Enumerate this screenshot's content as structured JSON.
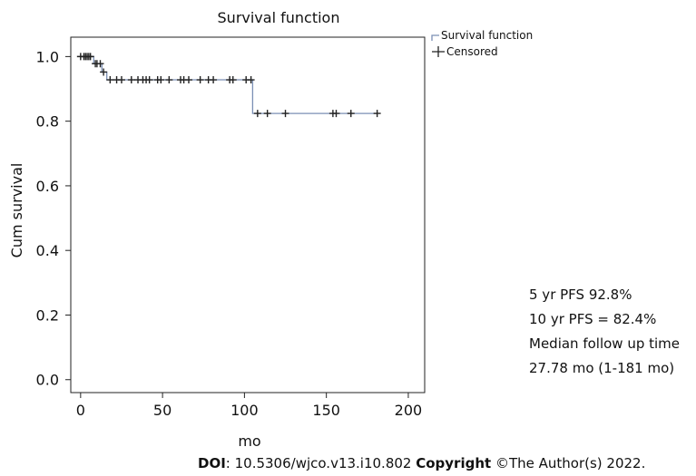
{
  "chart_data": {
    "type": "line",
    "title": "Survival function",
    "xlabel": "mo",
    "ylabel": "Cum survival",
    "xlim": [
      -6,
      210
    ],
    "ylim": [
      -0.04,
      1.06
    ],
    "x_ticks": [
      0,
      50,
      100,
      150,
      200
    ],
    "y_ticks": [
      0.0,
      0.2,
      0.4,
      0.6,
      0.8,
      1.0
    ],
    "y_tick_labels": [
      "0.0",
      "0.2",
      "0.4",
      "0.6",
      "0.8",
      "1.0"
    ],
    "legend_position": "top-right, outside plot",
    "series": [
      {
        "name": "Survival function",
        "color": "#7b8fb5",
        "step_points": [
          [
            0,
            1.0
          ],
          [
            8,
            1.0
          ],
          [
            8,
            0.978
          ],
          [
            13,
            0.978
          ],
          [
            13,
            0.952
          ],
          [
            16,
            0.952
          ],
          [
            16,
            0.928
          ],
          [
            105,
            0.928
          ],
          [
            105,
            0.824
          ],
          [
            181,
            0.824
          ]
        ]
      },
      {
        "name": "Censored",
        "color": "#222222",
        "marker": "+",
        "points": [
          [
            0,
            1.0
          ],
          [
            2,
            1.0
          ],
          [
            3,
            1.0
          ],
          [
            4,
            1.0
          ],
          [
            5,
            1.0
          ],
          [
            6,
            1.0
          ],
          [
            9,
            0.978
          ],
          [
            10,
            0.978
          ],
          [
            12,
            0.978
          ],
          [
            14,
            0.952
          ],
          [
            18,
            0.928
          ],
          [
            22,
            0.928
          ],
          [
            25,
            0.928
          ],
          [
            31,
            0.928
          ],
          [
            35,
            0.928
          ],
          [
            38,
            0.928
          ],
          [
            40,
            0.928
          ],
          [
            42,
            0.928
          ],
          [
            47,
            0.928
          ],
          [
            49,
            0.928
          ],
          [
            54,
            0.928
          ],
          [
            61,
            0.928
          ],
          [
            63,
            0.928
          ],
          [
            66,
            0.928
          ],
          [
            73,
            0.928
          ],
          [
            78,
            0.928
          ],
          [
            81,
            0.928
          ],
          [
            91,
            0.928
          ],
          [
            93,
            0.928
          ],
          [
            101,
            0.928
          ],
          [
            104,
            0.928
          ],
          [
            108,
            0.824
          ],
          [
            114,
            0.824
          ],
          [
            125,
            0.824
          ],
          [
            154,
            0.824
          ],
          [
            156,
            0.824
          ],
          [
            165,
            0.824
          ],
          [
            181,
            0.824
          ]
        ]
      }
    ]
  },
  "notes": {
    "line1": "5 yr PFS 92.8%",
    "line2": "10 yr PFS = 82.4%",
    "line3": "Median follow up time",
    "line4": "27.78 mo (1-181 mo)"
  },
  "footer": {
    "doi_label": "DOI",
    "doi_value": ": 10.5306/wjco.v13.i10.802 ",
    "copyright_label": "Copyright",
    "copyright_value": " ©The Author(s) 2022."
  }
}
